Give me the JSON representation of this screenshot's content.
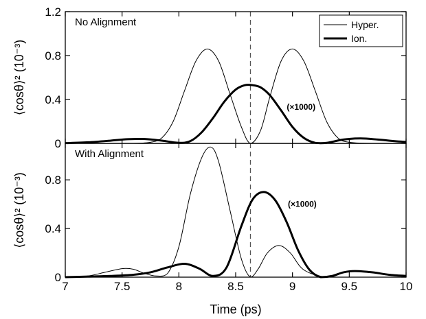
{
  "chart_data": [
    {
      "type": "line",
      "title": "No Alignment",
      "xlabel": "Time (ps)",
      "ylabel": "⟨cosθ⟩² (10⁻³)",
      "xlim": [
        7,
        10
      ],
      "ylim": [
        0,
        1.2
      ],
      "xticks": [
        "7",
        "7.5",
        "8",
        "8.5",
        "9",
        "9.5",
        "10"
      ],
      "yticks": [
        {
          "value": 0,
          "label": "0"
        },
        {
          "value": 0.4,
          "label": "0.4"
        },
        {
          "value": 0.8,
          "label": "0.8"
        },
        {
          "value": 1.2,
          "label": "1.2"
        }
      ],
      "vline": 8.63,
      "annotation": {
        "text": "(×1000)",
        "x": 8.95,
        "y": 0.33
      },
      "legend": {
        "position": "top-right",
        "entries": [
          "Hyper.",
          "Ion."
        ]
      },
      "series": [
        {
          "name": "Hyper.",
          "x": [
            7.0,
            7.2,
            7.4,
            7.6,
            7.75,
            7.85,
            7.95,
            8.05,
            8.15,
            8.25,
            8.35,
            8.45,
            8.55,
            8.63,
            8.72,
            8.8,
            8.9,
            9.0,
            9.1,
            9.2,
            9.3,
            9.4,
            9.5,
            9.7,
            10.0
          ],
          "y": [
            0.0,
            0.0,
            0.0,
            0.0,
            0.01,
            0.05,
            0.2,
            0.48,
            0.75,
            0.86,
            0.75,
            0.45,
            0.15,
            0.0,
            0.12,
            0.42,
            0.75,
            0.86,
            0.75,
            0.48,
            0.2,
            0.05,
            0.01,
            0.0,
            0.0
          ]
        },
        {
          "name": "Ion.",
          "x": [
            7.0,
            7.2,
            7.4,
            7.55,
            7.7,
            7.85,
            8.0,
            8.1,
            8.2,
            8.3,
            8.4,
            8.5,
            8.58,
            8.65,
            8.72,
            8.8,
            8.9,
            9.0,
            9.1,
            9.2,
            9.3,
            9.45,
            9.6,
            9.75,
            9.9,
            10.0
          ],
          "y": [
            0.002,
            0.01,
            0.025,
            0.038,
            0.04,
            0.025,
            0.005,
            0.02,
            0.1,
            0.23,
            0.38,
            0.49,
            0.53,
            0.53,
            0.51,
            0.44,
            0.3,
            0.15,
            0.05,
            0.005,
            0.005,
            0.035,
            0.045,
            0.035,
            0.02,
            0.013
          ]
        }
      ]
    },
    {
      "type": "line",
      "title": "With Alignment",
      "xlabel": "Time (ps)",
      "ylabel": "⟨cosθ⟩² (10⁻³)",
      "xlim": [
        7,
        10
      ],
      "ylim": [
        0,
        1.1
      ],
      "xticks": [
        "7",
        "7.5",
        "8",
        "8.5",
        "9",
        "9.5",
        "10"
      ],
      "yticks": [
        {
          "value": 0,
          "label": "0"
        },
        {
          "value": 0.4,
          "label": "0.4"
        },
        {
          "value": 0.8,
          "label": "0.8"
        }
      ],
      "vline": 8.63,
      "annotation": {
        "text": "(×1000)",
        "x": 8.96,
        "y": 0.6
      },
      "series": [
        {
          "name": "Hyper.",
          "x": [
            7.0,
            7.2,
            7.35,
            7.5,
            7.6,
            7.7,
            7.8,
            7.9,
            8.0,
            8.1,
            8.2,
            8.28,
            8.35,
            8.45,
            8.55,
            8.63,
            8.7,
            8.78,
            8.88,
            8.98,
            9.1,
            9.3,
            9.6,
            10.0
          ],
          "y": [
            0.0,
            0.01,
            0.04,
            0.07,
            0.065,
            0.03,
            0.01,
            0.03,
            0.25,
            0.68,
            0.98,
            1.07,
            0.95,
            0.55,
            0.15,
            0.0,
            0.07,
            0.2,
            0.26,
            0.2,
            0.06,
            0.0,
            0.0,
            0.0
          ]
        },
        {
          "name": "Ion.",
          "x": [
            7.0,
            7.2,
            7.4,
            7.6,
            7.75,
            7.9,
            8.05,
            8.18,
            8.3,
            8.42,
            8.55,
            8.65,
            8.75,
            8.85,
            8.95,
            9.05,
            9.15,
            9.25,
            9.35,
            9.45,
            9.55,
            9.7,
            9.85,
            10.0
          ],
          "y": [
            0.0,
            0.005,
            0.01,
            0.02,
            0.04,
            0.08,
            0.11,
            0.07,
            0.01,
            0.08,
            0.42,
            0.64,
            0.7,
            0.63,
            0.45,
            0.22,
            0.06,
            0.0,
            0.01,
            0.04,
            0.05,
            0.04,
            0.02,
            0.01
          ]
        }
      ]
    }
  ]
}
